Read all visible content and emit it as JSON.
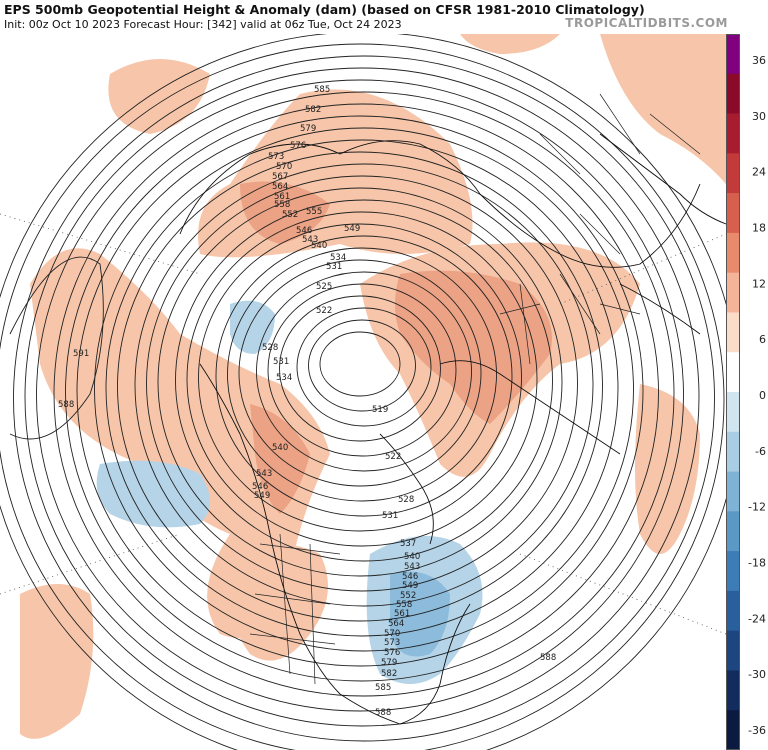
{
  "header": {
    "title": "EPS 500mb Geopotential Height & Anomaly (dam) (based on CFSR 1981-2010 Climatology)",
    "subtitle": "Init: 00z Oct 10 2023   Forecast Hour: [342]   valid at 06z Tue, Oct 24 2023",
    "brand": "TROPICALTIDBITS.COM"
  },
  "colorbar": {
    "labels": [
      "36",
      "30",
      "24",
      "18",
      "12",
      "6",
      "0",
      "-6",
      "-12",
      "-18",
      "-24",
      "-30",
      "-36"
    ],
    "colors": [
      "#800080",
      "#8b0a2a",
      "#a81c2f",
      "#c23b3a",
      "#d6604d",
      "#e88a6c",
      "#f4b49a",
      "#fbdcc8",
      "#ffffff",
      "#d1e5f0",
      "#a8cde4",
      "#7fb3d5",
      "#5a98c6",
      "#3c7cb7",
      "#2a5f9e",
      "#1d4580",
      "#122c5e",
      "#0a1a40"
    ]
  },
  "map": {
    "contour_labels": [
      "585",
      "582",
      "579",
      "576",
      "573",
      "570",
      "567",
      "564",
      "561",
      "558",
      "552",
      "555",
      "549",
      "546",
      "543",
      "540",
      "534",
      "531",
      "525",
      "522",
      "528",
      "531",
      "534",
      "519",
      "540",
      "543",
      "546",
      "549",
      "591",
      "588",
      "588",
      "585",
      "588",
      "582",
      "579",
      "576",
      "573",
      "570",
      "564",
      "561",
      "558",
      "552",
      "549",
      "546",
      "543",
      "540",
      "537",
      "531",
      "528",
      "522"
    ],
    "colors": {
      "positive_anomaly": "#f7c6aa",
      "strong_positive": "#e99b7f",
      "negative_anomaly": "#b5d4e8",
      "strong_negative": "#8cbbdc",
      "contour": "#222222",
      "coast": "#111111"
    }
  }
}
